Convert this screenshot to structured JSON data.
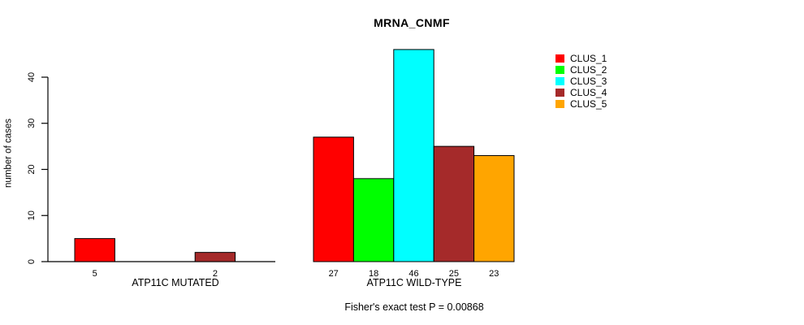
{
  "chart_data": {
    "type": "grouped_bar",
    "title": "MRNA_CNMF",
    "ylabel": "number of cases",
    "yticks": [
      0,
      10,
      20,
      30,
      40
    ],
    "ylim": [
      0,
      46
    ],
    "grid": false,
    "legend": {
      "position": "top-right",
      "items": [
        {
          "label": "CLUS_1",
          "color": "#FF0000"
        },
        {
          "label": "CLUS_2",
          "color": "#00FF00"
        },
        {
          "label": "CLUS_3",
          "color": "#00FFFF"
        },
        {
          "label": "CLUS_4",
          "color": "#A52A2A"
        },
        {
          "label": "CLUS_5",
          "color": "#FFA500"
        }
      ]
    },
    "groups": [
      {
        "label": "ATP11C MUTATED",
        "values": [
          5,
          0,
          0,
          2,
          0
        ]
      },
      {
        "label": "ATP11C WILD-TYPE",
        "values": [
          27,
          18,
          46,
          25,
          23
        ]
      }
    ],
    "annotation": "Fisher's exact test P = 0.00868",
    "axis_color": "#000000",
    "bar_border_color": "#000000"
  }
}
